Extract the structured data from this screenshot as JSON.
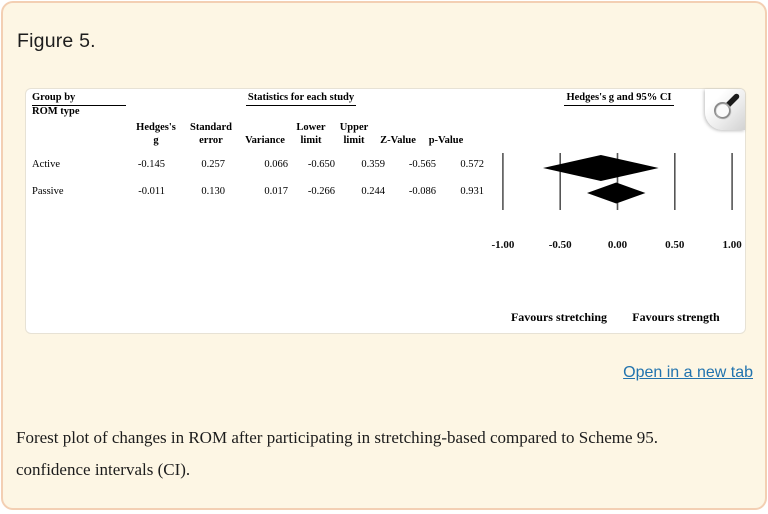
{
  "figure": {
    "label": "Figure 5.",
    "open_link": "Open in a new tab",
    "caption_lines": [
      "Forest plot of changes in ROM after participating in stretching-based compared to Scheme 95.",
      "confidence intervals (CI)."
    ]
  },
  "plot": {
    "group_by_line1": "Group by",
    "group_by_line2": "ROM type",
    "stats_header": "Statistics for each study",
    "ci_header": "Hedges's g and 95% CI",
    "columns": [
      {
        "label": "Hedges's g",
        "line1": "Hedges's",
        "line2": "g"
      },
      {
        "label": "Standard error",
        "line1": "Standard",
        "line2": "error"
      },
      {
        "label": "Variance",
        "line1": "",
        "line2": "Variance"
      },
      {
        "label": "Lower limit",
        "line1": "Lower",
        "line2": "limit"
      },
      {
        "label": "Upper limit",
        "line1": "Upper",
        "line2": "limit"
      },
      {
        "label": "Z-Value",
        "line1": "",
        "line2": "Z-Value"
      },
      {
        "label": "p-Value",
        "line1": "",
        "line2": "p-Value"
      }
    ],
    "rows": [
      {
        "label": "Active",
        "values": [
          "-0.145",
          "0.257",
          "0.066",
          "-0.650",
          "0.359",
          "-0.565",
          "0.572"
        ]
      },
      {
        "label": "Passive",
        "values": [
          "-0.011",
          "0.130",
          "0.017",
          "-0.266",
          "0.244",
          "-0.086",
          "0.931"
        ]
      }
    ],
    "axis_tick_labels": [
      "-1.00",
      "-0.50",
      "0.00",
      "0.50",
      "1.00"
    ],
    "favours_left": "Favours stretching",
    "favours_right": "Favours strength",
    "magnifier_icon": "magnifier"
  },
  "colors": {
    "card_background": "#fdf6e4",
    "card_border": "#f3cfb3",
    "link_blue": "#2173ae",
    "diamond_black": "#000000",
    "gridline_gray": "#555555"
  },
  "chart_data": {
    "type": "scatter",
    "subtype": "forest_plot",
    "title": "Hedges's g and 95% CI",
    "x_ticks": [
      -1.0,
      -0.5,
      0.0,
      0.5,
      1.0
    ],
    "xlim": [
      -1.0,
      1.0
    ],
    "x_annotation_left": "Favours stretching",
    "x_annotation_right": "Favours strength",
    "series": [
      {
        "name": "Active",
        "marker": "diamond",
        "hedges_g": -0.145,
        "standard_error": 0.257,
        "variance": 0.066,
        "lower_limit": -0.65,
        "upper_limit": 0.359,
        "z_value": -0.565,
        "p_value": 0.572
      },
      {
        "name": "Passive",
        "marker": "diamond",
        "hedges_g": -0.011,
        "standard_error": 0.13,
        "variance": 0.017,
        "lower_limit": -0.266,
        "upper_limit": 0.244,
        "z_value": -0.086,
        "p_value": 0.931
      }
    ]
  }
}
